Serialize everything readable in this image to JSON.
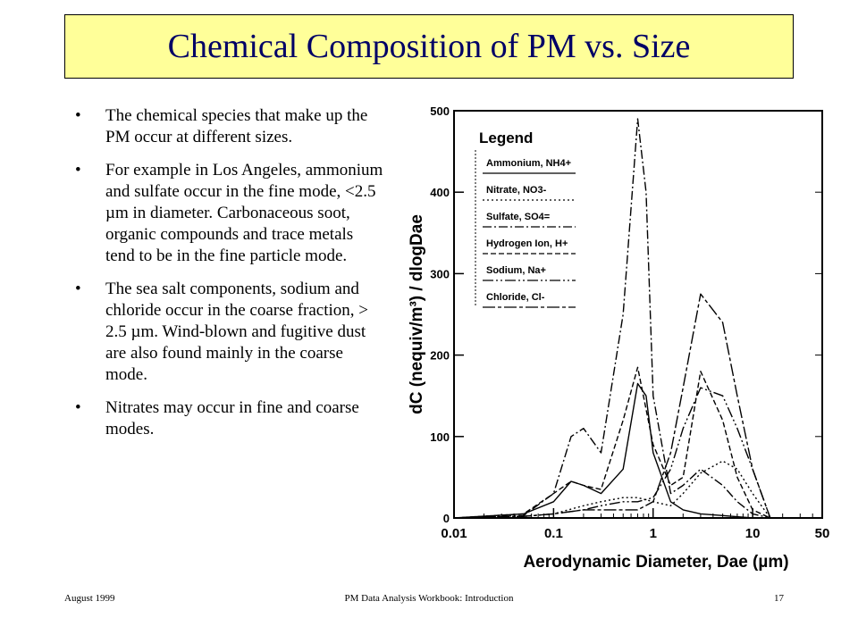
{
  "slide": {
    "title": "Chemical Composition of  PM vs. Size",
    "bullets": [
      "The chemical species that make up the PM occur at different sizes.",
      "For example in Los Angeles, ammonium and sulfate occur in the fine mode, <2.5 µm in diameter. Carbonaceous soot, organic compounds and trace metals tend to be in the fine particle mode.",
      "The sea salt components, sodium and chloride occur in the coarse fraction, > 2.5 µm. Wind-blown and fugitive dust are also found mainly in the coarse mode.",
      "Nitrates may occur in fine and coarse modes."
    ],
    "bullet_glyph": "•"
  },
  "footer": {
    "left": "August 1999",
    "center": "PM Data Analysis Workbook: Introduction",
    "right": "17"
  },
  "colors": {
    "title_text": "#000066",
    "title_bg": "#ffff99"
  },
  "chart_data": {
    "type": "line",
    "xscale": "log",
    "xlabel": "Aerodynamic Diameter, Dae (µm)",
    "ylabel": "dC (nequiv/m³) / dlogDae",
    "xlim": [
      0.01,
      50
    ],
    "ylim": [
      0,
      500
    ],
    "xticks": [
      {
        "v": 0.01,
        "label": "0.01"
      },
      {
        "v": 0.1,
        "label": "0.1"
      },
      {
        "v": 1,
        "label": "1"
      },
      {
        "v": 10,
        "label": "10"
      },
      {
        "v": 50,
        "label": "50"
      }
    ],
    "yticks": [
      {
        "v": 0,
        "label": "0"
      },
      {
        "v": 100,
        "label": "100"
      },
      {
        "v": 200,
        "label": "200"
      },
      {
        "v": 300,
        "label": "300"
      },
      {
        "v": 400,
        "label": "400"
      },
      {
        "v": 500,
        "label": "500"
      }
    ],
    "legend_title": "Legend",
    "legend_position": "top-left",
    "series": [
      {
        "name": "Ammonium, NH4+",
        "dash": "none",
        "x": [
          0.01,
          0.05,
          0.1,
          0.15,
          0.2,
          0.3,
          0.5,
          0.7,
          0.85,
          1.0,
          1.5,
          2.0,
          3.0,
          5.0,
          10,
          15
        ],
        "y": [
          0,
          5,
          20,
          45,
          40,
          30,
          60,
          165,
          150,
          80,
          20,
          10,
          5,
          3,
          0,
          0
        ]
      },
      {
        "name": "Nitrate, NO3-",
        "dash": "2,3",
        "x": [
          0.01,
          0.05,
          0.1,
          0.2,
          0.3,
          0.5,
          0.7,
          1.0,
          1.5,
          2.0,
          3.0,
          5.0,
          7.0,
          10,
          15
        ],
        "y": [
          0,
          2,
          5,
          15,
          20,
          25,
          25,
          20,
          15,
          30,
          55,
          70,
          60,
          30,
          0
        ]
      },
      {
        "name": "Sulfate, SO4=",
        "dash": "10,3,2,3",
        "x": [
          0.01,
          0.05,
          0.1,
          0.15,
          0.2,
          0.3,
          0.5,
          0.7,
          0.85,
          1.0,
          1.5,
          2.0,
          3.0,
          5.0,
          7.0,
          10,
          15
        ],
        "y": [
          0,
          3,
          30,
          100,
          110,
          80,
          250,
          490,
          400,
          150,
          30,
          40,
          60,
          40,
          20,
          5,
          0
        ]
      },
      {
        "name": "Hydrogen Ion, H+",
        "dash": "6,3",
        "x": [
          0.01,
          0.05,
          0.1,
          0.15,
          0.2,
          0.3,
          0.5,
          0.7,
          1.0,
          1.5,
          2.0,
          3.0,
          5.0,
          7.0,
          10,
          15
        ],
        "y": [
          0,
          5,
          30,
          45,
          40,
          35,
          120,
          185,
          90,
          40,
          50,
          180,
          120,
          50,
          10,
          0
        ]
      },
      {
        "name": "Sodium, Na+",
        "dash": "12,3,2,3,2,3",
        "x": [
          0.01,
          0.05,
          0.1,
          0.2,
          0.3,
          0.5,
          0.7,
          1.0,
          1.5,
          2.0,
          3.0,
          5.0,
          7.0,
          10,
          15
        ],
        "y": [
          0,
          2,
          5,
          10,
          15,
          20,
          20,
          25,
          60,
          110,
          160,
          150,
          110,
          60,
          0
        ]
      },
      {
        "name": "Chloride, Cl-",
        "dash": "14,3,4,3",
        "x": [
          0.01,
          0.05,
          0.1,
          0.2,
          0.3,
          0.5,
          0.7,
          1.0,
          1.5,
          2.0,
          3.0,
          5.0,
          7.0,
          10,
          15
        ],
        "y": [
          0,
          2,
          5,
          10,
          10,
          10,
          10,
          20,
          80,
          160,
          275,
          240,
          150,
          60,
          0
        ]
      }
    ]
  }
}
